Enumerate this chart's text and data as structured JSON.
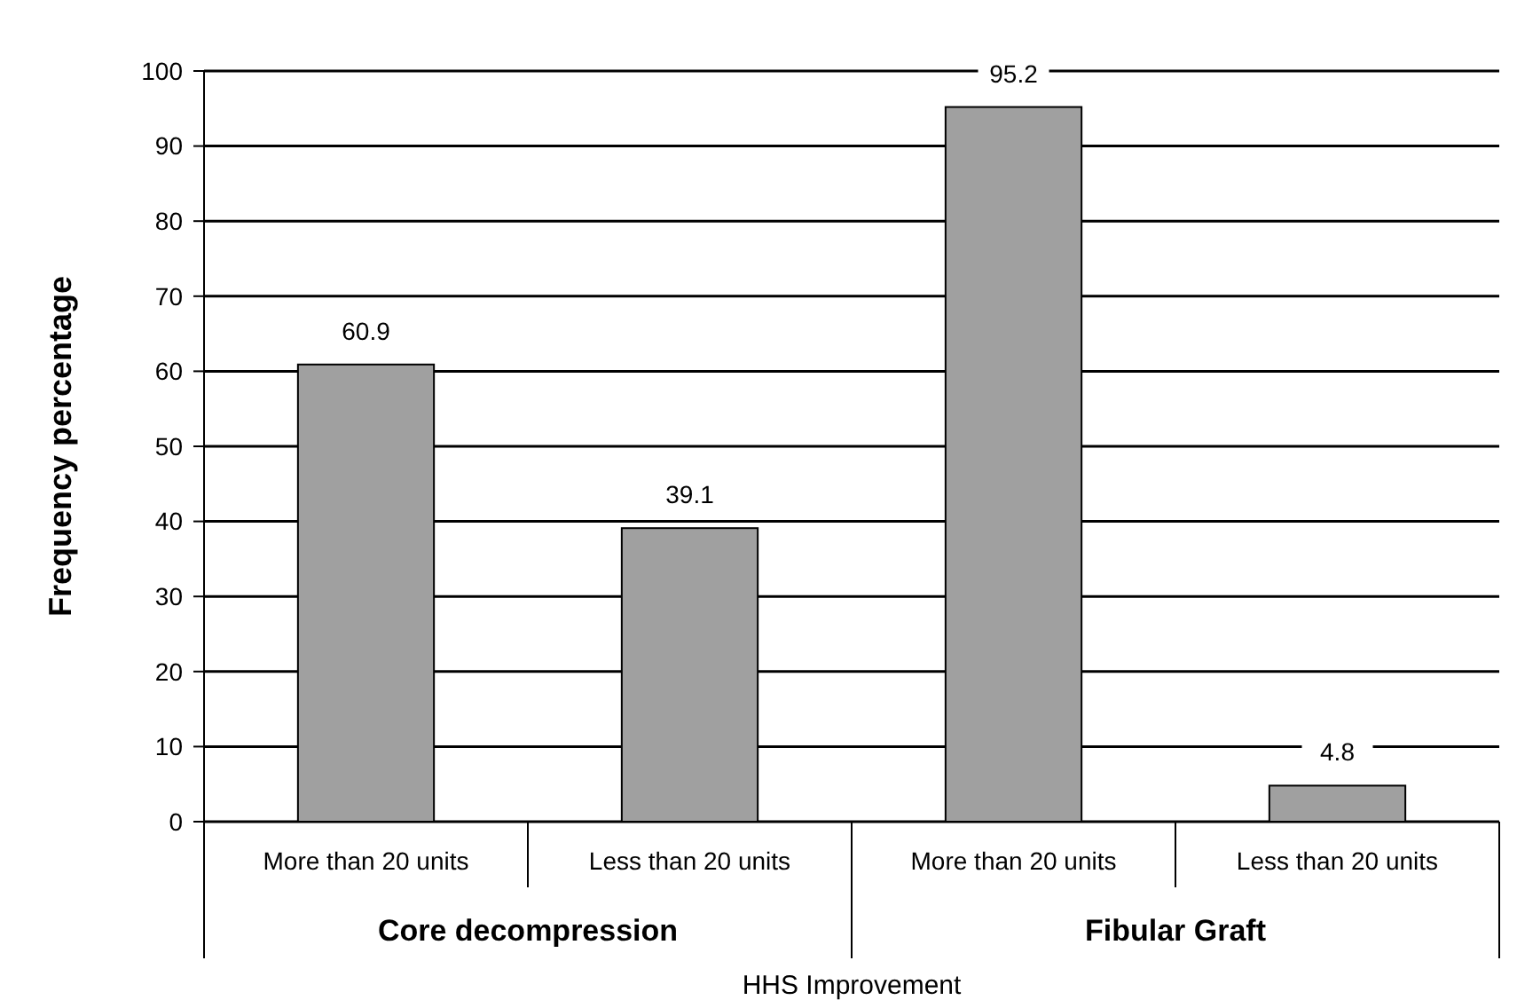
{
  "chart_data": {
    "type": "bar",
    "ylabel": "Frequency percentage",
    "xlabel": "HHS Improvement",
    "categories": [
      "More than 20 units",
      "Less than 20 units",
      "More than 20 units",
      "Less than 20 units"
    ],
    "values": [
      60.9,
      39.1,
      95.2,
      4.8
    ],
    "color": "#a0a0a0",
    "data_labels": true,
    "ylim": [
      0,
      100
    ],
    "yticks": [
      0,
      10,
      20,
      30,
      40,
      50,
      60,
      70,
      80,
      90,
      100
    ],
    "grid": "y",
    "annotations": [
      "Core decompression",
      "Fibular Graft"
    ]
  }
}
